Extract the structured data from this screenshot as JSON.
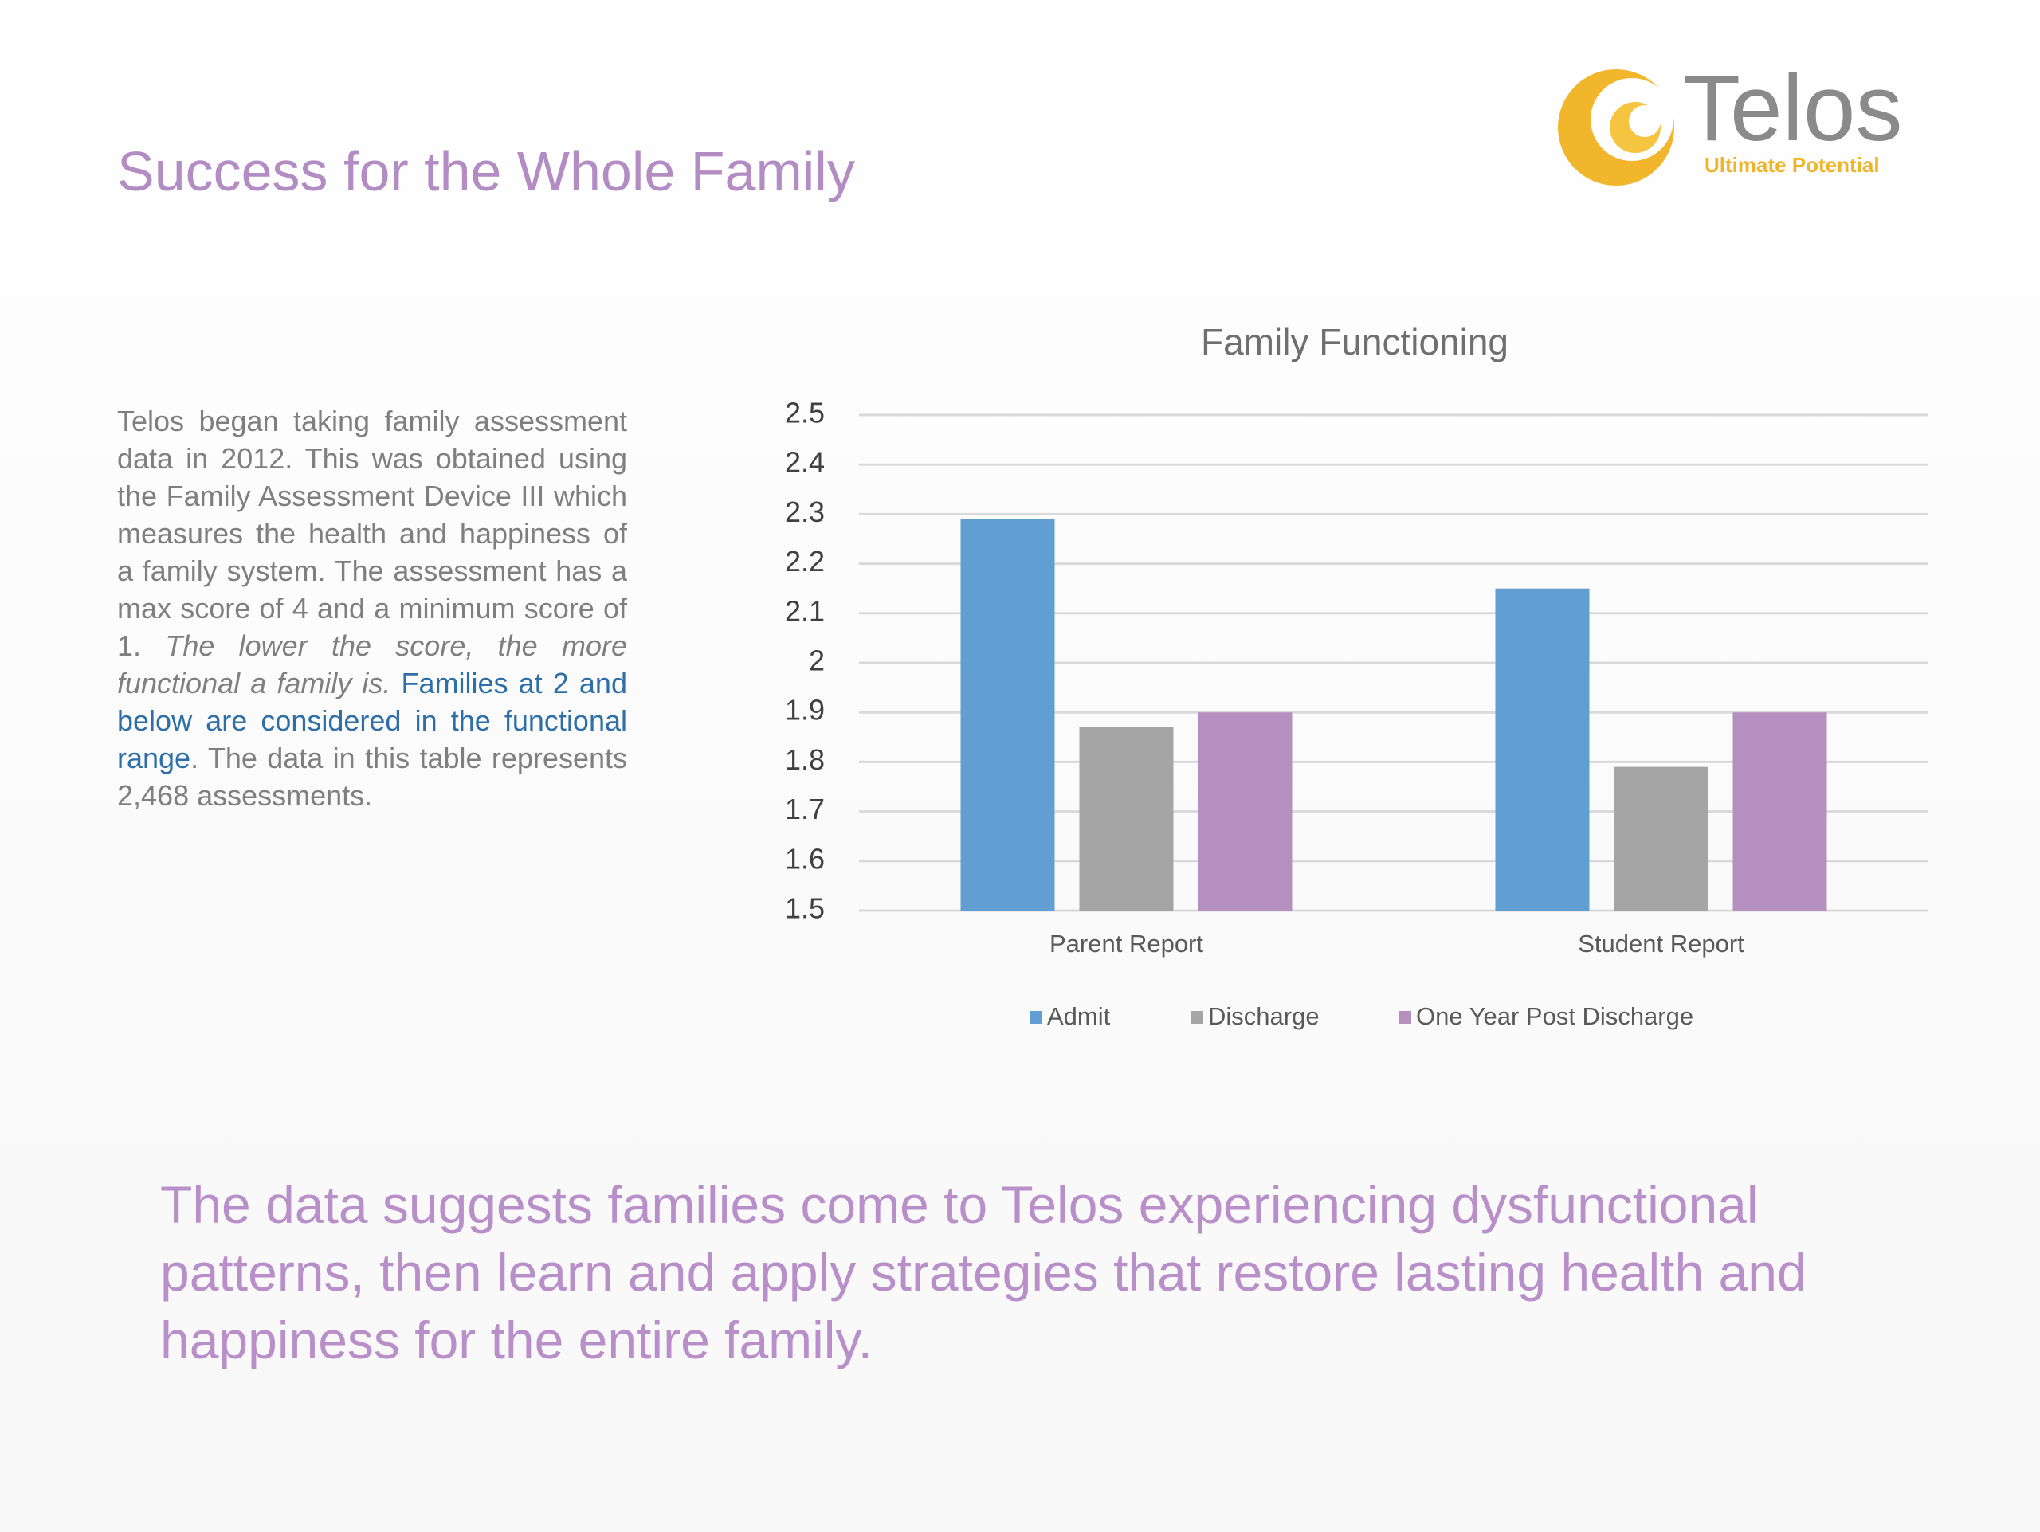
{
  "header": {
    "title": "Success for the Whole Family"
  },
  "logo": {
    "name": "Telos",
    "tagline": "Ultimate Potential"
  },
  "body": {
    "intro": "Telos began taking family assessment data in 2012.  This was obtained using the Family Assessment Device III which measures the health and happiness of a family system.  The assessment has a max score of 4 and a minimum score of 1.",
    "emphasis": "The lower the score, the more functional a family is.",
    "highlight": "Families at 2 and below are considered in the functional range",
    "period": ".",
    "closing": "The data in this table represents 2,468 assessments."
  },
  "conclusion": {
    "lines": [
      "The data suggests families come to Telos experiencing dysfunctional",
      "patterns, then learn and apply strategies that restore lasting health and",
      "happiness for the entire family."
    ]
  },
  "chart_data": {
    "type": "bar",
    "title": "Family Functioning",
    "categories": [
      "Parent Report",
      "Student Report"
    ],
    "series": [
      {
        "name": "Admit",
        "color": "#619ed2",
        "values": [
          2.29,
          2.15
        ]
      },
      {
        "name": "Discharge",
        "color": "#a5a5a5",
        "values": [
          1.87,
          1.79
        ]
      },
      {
        "name": "One Year Post Discharge",
        "color": "#b68fc1",
        "values": [
          1.9,
          1.9
        ]
      }
    ],
    "ylim": [
      1.5,
      2.5
    ],
    "yticks": [
      1.5,
      1.6,
      1.7,
      1.8,
      1.9,
      2,
      2.1,
      2.2,
      2.3,
      2.4,
      2.5
    ],
    "grid": true,
    "legend": "bottom"
  }
}
